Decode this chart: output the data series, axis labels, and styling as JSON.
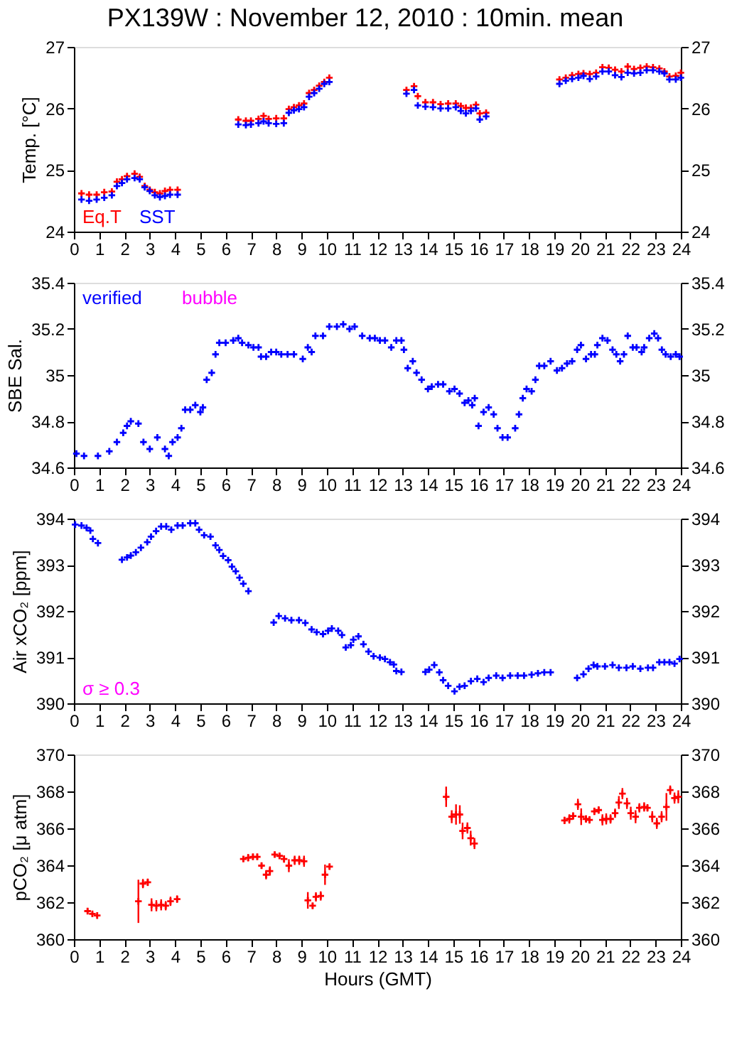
{
  "chart_data": [
    {
      "type": "scatter",
      "title": "PX139W : November 12, 2010 : 10min. mean",
      "ylabel": "Temp. [°C]",
      "xlim": [
        0,
        24
      ],
      "xticks": [
        0,
        1,
        2,
        3,
        4,
        5,
        6,
        7,
        8,
        9,
        10,
        11,
        12,
        13,
        14,
        15,
        16,
        17,
        18,
        19,
        20,
        21,
        22,
        23,
        24
      ],
      "ylim": [
        24,
        27
      ],
      "yticks": [
        24,
        25,
        26,
        27
      ],
      "y2lim": [
        24,
        27
      ],
      "y2ticks": [
        24,
        25,
        26,
        27
      ],
      "marker": "cross",
      "legend": "bottom left",
      "grid": false,
      "series": [
        {
          "name": "Eq.T",
          "color": "#ff0000",
          "x": [
            0.3,
            0.6,
            0.9,
            1.2,
            1.5,
            1.7,
            1.9,
            2.1,
            2.4,
            2.6,
            2.8,
            3.0,
            3.2,
            3.4,
            3.6,
            3.8,
            4.1,
            6.5,
            6.8,
            7.0,
            7.3,
            7.5,
            7.7,
            8.0,
            8.3,
            8.5,
            8.7,
            8.9,
            9.1,
            9.3,
            9.5,
            9.7,
            9.9,
            10.1,
            13.15,
            13.45,
            13.6,
            13.9,
            14.2,
            14.5,
            14.8,
            15.1,
            15.3,
            15.5,
            15.7,
            15.9,
            16.05,
            16.3,
            19.2,
            19.45,
            19.7,
            19.95,
            20.15,
            20.4,
            20.65,
            20.9,
            21.15,
            21.4,
            21.65,
            21.9,
            22.15,
            22.4,
            22.65,
            22.9,
            23.15,
            23.35,
            23.55,
            23.8,
            24.0
          ],
          "values": [
            24.62,
            24.6,
            24.6,
            24.64,
            24.65,
            24.81,
            24.85,
            24.9,
            24.94,
            24.89,
            24.74,
            24.68,
            24.64,
            24.62,
            24.66,
            24.68,
            24.68,
            25.82,
            25.8,
            25.8,
            25.83,
            25.88,
            25.83,
            25.84,
            25.84,
            25.99,
            26.02,
            26.05,
            26.08,
            26.25,
            26.3,
            26.37,
            26.43,
            26.5,
            26.3,
            26.36,
            26.2,
            26.1,
            26.1,
            26.07,
            26.08,
            26.08,
            26.04,
            26.01,
            26.01,
            26.06,
            25.92,
            25.93,
            26.47,
            26.5,
            26.54,
            26.56,
            26.57,
            26.56,
            26.58,
            26.67,
            26.66,
            26.63,
            26.6,
            26.68,
            26.64,
            26.66,
            26.68,
            26.67,
            26.65,
            26.6,
            26.52,
            26.53,
            26.58
          ]
        },
        {
          "name": "SST",
          "color": "#0000ff",
          "x": [
            0.3,
            0.6,
            0.9,
            1.2,
            1.5,
            1.7,
            1.9,
            2.1,
            2.4,
            2.6,
            2.8,
            3.0,
            3.2,
            3.4,
            3.6,
            3.8,
            4.1,
            6.5,
            6.8,
            7.0,
            7.3,
            7.5,
            7.7,
            8.0,
            8.3,
            8.5,
            8.7,
            8.9,
            9.1,
            9.3,
            9.5,
            9.7,
            9.9,
            10.1,
            13.15,
            13.45,
            13.6,
            13.9,
            14.2,
            14.5,
            14.8,
            15.1,
            15.3,
            15.5,
            15.7,
            15.9,
            16.05,
            16.3,
            19.2,
            19.45,
            19.7,
            19.95,
            20.15,
            20.4,
            20.65,
            20.9,
            21.15,
            21.4,
            21.65,
            21.9,
            22.15,
            22.4,
            22.65,
            22.9,
            23.15,
            23.35,
            23.55,
            23.8,
            24.0
          ],
          "values": [
            24.52,
            24.5,
            24.52,
            24.55,
            24.59,
            24.74,
            24.79,
            24.85,
            24.87,
            24.85,
            24.72,
            24.66,
            24.59,
            24.56,
            24.58,
            24.6,
            24.6,
            25.74,
            25.73,
            25.74,
            25.76,
            25.79,
            25.76,
            25.75,
            25.76,
            25.93,
            25.97,
            25.99,
            26.02,
            26.19,
            26.25,
            26.32,
            26.4,
            26.43,
            26.24,
            26.3,
            26.05,
            26.03,
            26.02,
            26.0,
            26.0,
            26.02,
            25.96,
            25.92,
            25.96,
            26.0,
            25.82,
            25.87,
            26.4,
            26.45,
            26.48,
            26.5,
            26.53,
            26.48,
            26.52,
            26.6,
            26.6,
            26.54,
            26.51,
            26.58,
            26.57,
            26.58,
            26.62,
            26.62,
            26.6,
            26.57,
            26.47,
            26.47,
            26.5
          ]
        }
      ]
    },
    {
      "type": "scatter",
      "ylabel": "SBE Sal.",
      "xlim": [
        0,
        24
      ],
      "xticks": [
        0,
        1,
        2,
        3,
        4,
        5,
        6,
        7,
        8,
        9,
        10,
        11,
        12,
        13,
        14,
        15,
        16,
        17,
        18,
        19,
        20,
        21,
        22,
        23,
        24
      ],
      "ylim": [
        34.6,
        35.4
      ],
      "yticks": [
        34.6,
        34.8,
        35,
        35.2,
        35.4
      ],
      "y2lim": [
        34.6,
        35.4
      ],
      "y2ticks": [
        34.6,
        34.8,
        35,
        35.2,
        35.4
      ],
      "marker": "cross",
      "legend": "top left",
      "grid": false,
      "annotations": [
        "bubble"
      ],
      "series": [
        {
          "name": "verified",
          "color": "#0000ff",
          "x": [
            0.1,
            0.4,
            0.95,
            1.4,
            1.7,
            1.95,
            2.1,
            2.25,
            2.55,
            2.75,
            3.0,
            3.3,
            3.6,
            3.75,
            3.9,
            4.1,
            4.25,
            4.4,
            4.6,
            4.8,
            5.0,
            5.1,
            5.25,
            5.45,
            5.6,
            5.75,
            6.0,
            6.3,
            6.5,
            6.65,
            6.9,
            7.1,
            7.3,
            7.4,
            7.6,
            7.8,
            8.0,
            8.2,
            8.45,
            8.7,
            9.05,
            9.25,
            9.4,
            9.55,
            9.85,
            10.1,
            10.4,
            10.65,
            10.9,
            11.1,
            11.4,
            11.7,
            11.9,
            12.1,
            12.3,
            12.55,
            12.75,
            12.95,
            13.05,
            13.2,
            13.4,
            13.55,
            13.75,
            14.0,
            14.15,
            14.4,
            14.6,
            14.85,
            15.05,
            15.25,
            15.45,
            15.6,
            15.75,
            15.85,
            16.0,
            16.2,
            16.4,
            16.6,
            16.75,
            16.95,
            17.15,
            17.45,
            17.6,
            17.75,
            17.9,
            18.1,
            18.25,
            18.4,
            18.6,
            18.85,
            19.1,
            19.3,
            19.5,
            19.7,
            19.9,
            20.05,
            20.25,
            20.45,
            20.6,
            20.7,
            20.9,
            21.1,
            21.3,
            21.45,
            21.6,
            21.75,
            21.9,
            22.1,
            22.25,
            22.45,
            22.55,
            22.75,
            22.95,
            23.1,
            23.25,
            23.4,
            23.6,
            23.8,
            23.95
          ],
          "values": [
            34.66,
            34.65,
            34.65,
            34.67,
            34.71,
            34.75,
            34.78,
            34.8,
            34.79,
            34.71,
            34.68,
            34.73,
            34.68,
            34.65,
            34.71,
            34.73,
            34.77,
            34.85,
            34.85,
            34.87,
            34.84,
            34.86,
            34.98,
            35.01,
            35.09,
            35.14,
            35.14,
            35.15,
            35.16,
            35.14,
            35.13,
            35.12,
            35.12,
            35.08,
            35.08,
            35.1,
            35.1,
            35.09,
            35.09,
            35.09,
            35.07,
            35.12,
            35.1,
            35.17,
            35.17,
            35.21,
            35.21,
            35.22,
            35.2,
            35.21,
            35.17,
            35.16,
            35.16,
            35.15,
            35.15,
            35.12,
            35.15,
            35.15,
            35.11,
            35.03,
            35.06,
            35.01,
            34.98,
            34.94,
            34.95,
            34.96,
            34.96,
            34.93,
            34.94,
            34.92,
            34.88,
            34.89,
            34.87,
            34.9,
            34.78,
            34.84,
            34.86,
            34.83,
            34.77,
            34.73,
            34.73,
            34.77,
            34.83,
            34.9,
            34.94,
            34.93,
            34.98,
            35.04,
            35.04,
            35.06,
            35.02,
            35.03,
            35.05,
            35.06,
            35.11,
            35.13,
            35.07,
            35.09,
            35.09,
            35.13,
            35.16,
            35.15,
            35.11,
            35.09,
            35.06,
            35.09,
            35.17,
            35.12,
            35.12,
            35.1,
            35.12,
            35.16,
            35.18,
            35.16,
            35.11,
            35.09,
            35.08,
            35.09,
            35.08
          ]
        }
      ]
    },
    {
      "type": "scatter",
      "ylabel": "Air xCO₂ [ppm]",
      "xlim": [
        0,
        24
      ],
      "xticks": [
        0,
        1,
        2,
        3,
        4,
        5,
        6,
        7,
        8,
        9,
        10,
        11,
        12,
        13,
        14,
        15,
        16,
        17,
        18,
        19,
        20,
        21,
        22,
        23,
        24
      ],
      "ylim": [
        390,
        394
      ],
      "yticks": [
        390,
        391,
        392,
        393,
        394
      ],
      "y2lim": [
        390,
        394
      ],
      "y2ticks": [
        390,
        391,
        392,
        393,
        394
      ],
      "marker": "cross",
      "grid": false,
      "annotations": [
        "σ ≥ 0.3"
      ],
      "series": [
        {
          "color": "#0000ff",
          "x": [
            0.05,
            0.3,
            0.5,
            0.65,
            0.75,
            0.95,
            1.9,
            2.1,
            2.25,
            2.45,
            2.65,
            2.9,
            3.05,
            3.25,
            3.45,
            3.65,
            3.85,
            4.1,
            4.3,
            4.6,
            4.8,
            4.95,
            5.15,
            5.4,
            5.6,
            5.75,
            5.9,
            6.1,
            6.25,
            6.4,
            6.55,
            6.7,
            6.9,
            7.9,
            8.1,
            8.35,
            8.6,
            8.9,
            9.15,
            9.4,
            9.6,
            9.85,
            10.05,
            10.2,
            10.45,
            10.6,
            10.75,
            10.95,
            11.05,
            11.25,
            11.45,
            11.65,
            11.85,
            12.1,
            12.3,
            12.5,
            12.65,
            12.75,
            12.95,
            13.9,
            14.05,
            14.25,
            14.45,
            14.6,
            14.8,
            15.05,
            15.25,
            15.45,
            15.7,
            15.95,
            16.2,
            16.4,
            16.7,
            16.95,
            17.25,
            17.55,
            17.8,
            18.1,
            18.35,
            18.6,
            18.85,
            19.9,
            20.15,
            20.35,
            20.55,
            20.7,
            21.0,
            21.3,
            21.55,
            21.85,
            22.1,
            22.4,
            22.7,
            22.9,
            23.15,
            23.35,
            23.55,
            23.75,
            23.95
          ],
          "values": [
            393.87,
            393.85,
            393.8,
            393.74,
            393.56,
            393.47,
            393.11,
            393.16,
            393.2,
            393.27,
            393.37,
            393.49,
            393.61,
            393.73,
            393.83,
            393.83,
            393.76,
            393.85,
            393.85,
            393.9,
            393.9,
            393.76,
            393.64,
            393.61,
            393.42,
            393.32,
            393.19,
            393.1,
            392.96,
            392.86,
            392.72,
            392.59,
            392.43,
            391.75,
            391.89,
            391.84,
            391.8,
            391.8,
            391.74,
            391.6,
            391.54,
            391.5,
            391.57,
            391.62,
            391.57,
            391.48,
            391.21,
            391.26,
            391.38,
            391.45,
            391.28,
            391.12,
            391.02,
            390.99,
            390.96,
            390.89,
            390.84,
            390.7,
            390.68,
            390.68,
            390.73,
            390.83,
            390.67,
            390.5,
            390.38,
            390.26,
            390.36,
            390.38,
            390.48,
            390.53,
            390.46,
            390.55,
            390.6,
            390.55,
            390.6,
            390.6,
            390.6,
            390.62,
            390.65,
            390.67,
            390.67,
            390.55,
            390.63,
            390.75,
            390.83,
            390.8,
            390.8,
            390.83,
            390.77,
            390.77,
            390.8,
            390.75,
            390.77,
            390.77,
            390.89,
            390.89,
            390.89,
            390.86,
            390.96
          ]
        }
      ]
    },
    {
      "type": "scatter",
      "ylabel": "pCO₂ [μ atm]",
      "xlabel": "Hours (GMT)",
      "xlim": [
        0,
        24
      ],
      "xticks": [
        0,
        1,
        2,
        3,
        4,
        5,
        6,
        7,
        8,
        9,
        10,
        11,
        12,
        13,
        14,
        15,
        16,
        17,
        18,
        19,
        20,
        21,
        22,
        23,
        24
      ],
      "ylim": [
        360,
        370
      ],
      "yticks": [
        360,
        362,
        364,
        366,
        368,
        370
      ],
      "y2lim": [
        360,
        370
      ],
      "y2ticks": [
        360,
        362,
        364,
        366,
        368,
        370
      ],
      "marker": "cross",
      "grid": false,
      "series": [
        {
          "color": "#ff0000",
          "x": [
            0.54,
            0.73,
            0.92,
            2.55,
            2.73,
            2.92,
            3.07,
            3.26,
            3.45,
            3.63,
            3.82,
            4.08,
            6.7,
            6.89,
            7.08,
            7.25,
            7.42,
            7.6,
            7.75,
            7.94,
            8.13,
            8.31,
            8.5,
            8.73,
            8.91,
            9.1,
            9.25,
            9.44,
            9.57,
            9.76,
            9.93,
            10.11,
            14.72,
            14.94,
            15.11,
            15.26,
            15.37,
            15.56,
            15.69,
            15.84,
            19.4,
            19.59,
            19.74,
            19.93,
            20.06,
            20.25,
            20.39,
            20.58,
            20.75,
            20.9,
            21.05,
            21.22,
            21.4,
            21.55,
            21.69,
            21.87,
            22.02,
            22.21,
            22.36,
            22.55,
            22.68,
            22.87,
            23.05,
            23.24,
            23.43,
            23.58,
            23.75,
            23.9
          ],
          "values": [
            361.52,
            361.37,
            361.28,
            362.05,
            363.01,
            363.08,
            361.86,
            361.81,
            361.86,
            361.81,
            362.05,
            362.17,
            364.34,
            364.41,
            364.46,
            364.46,
            363.98,
            363.49,
            363.69,
            364.58,
            364.51,
            364.34,
            363.98,
            364.27,
            364.27,
            364.22,
            362.1,
            361.81,
            362.29,
            362.34,
            363.49,
            363.93,
            367.71,
            366.63,
            366.75,
            366.75,
            365.86,
            366.02,
            365.47,
            365.18,
            366.43,
            366.51,
            366.67,
            367.3,
            366.63,
            366.51,
            366.46,
            366.92,
            366.99,
            366.46,
            366.51,
            366.51,
            366.82,
            367.4,
            367.88,
            367.35,
            366.82,
            366.63,
            367.11,
            367.16,
            367.11,
            366.63,
            366.27,
            366.63,
            367.16,
            368.07,
            367.64,
            367.71
          ],
          "errors": [
            0.15,
            0.1,
            0.1,
            1.17,
            0.25,
            0.2,
            0.35,
            0.3,
            0.3,
            0.25,
            0.25,
            0.2,
            0.15,
            0.2,
            0.15,
            0.15,
            0.15,
            0.25,
            0.25,
            0.15,
            0.15,
            0.2,
            0.35,
            0.25,
            0.25,
            0.3,
            0.45,
            0.15,
            0.25,
            0.25,
            0.55,
            0.15,
            0.55,
            0.35,
            0.55,
            0.5,
            0.45,
            0.3,
            0.4,
            0.3,
            0.2,
            0.25,
            0.2,
            0.3,
            0.45,
            0.2,
            0.2,
            0.2,
            0.2,
            0.3,
            0.3,
            0.25,
            0.25,
            0.35,
            0.3,
            0.3,
            0.35,
            0.35,
            0.25,
            0.25,
            0.2,
            0.3,
            0.3,
            0.3,
            0.75,
            0.25,
            0.3,
            0.35
          ]
        }
      ]
    }
  ]
}
